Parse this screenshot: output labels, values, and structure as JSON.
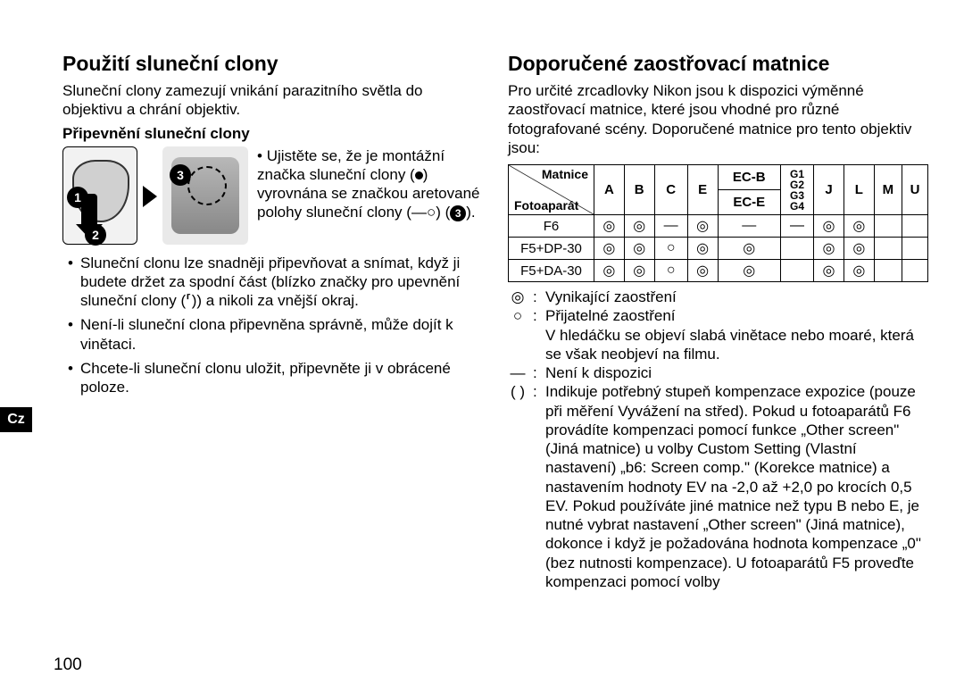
{
  "page_number": "100",
  "lang_tab": "Cz",
  "left": {
    "heading": "Použití sluneční clony",
    "intro": "Sluneční clony zamezují vnikání parazitního světla do objektivu a chrání objektiv.",
    "sub_heading": "Připevnění sluneční clony",
    "attach_pre": "Ujistěte se, že je montážní značka sluneční clony (",
    "attach_mid1": ") vyrovnána se značkou aretované polohy sluneční clony (",
    "attach_mark2": "—○",
    "attach_mid2": ") (",
    "attach_post": ").",
    "bullet1": "Sluneční clonu lze snadněji připevňovat a snímat, když ji budete držet za spodní část (blízko značky pro upevnění sluneční clony (⸢)) a nikoli za vnější okraj.",
    "bullet2": "Není-li sluneční clona připevněna správně, může dojít k vinětaci.",
    "bullet3": "Chcete-li sluneční clonu uložit, připevněte ji v obrácené poloze."
  },
  "right": {
    "heading": "Doporučené zaostřovací matnice",
    "intro": "Pro určité zrcadlovky Nikon jsou k dispozici výměnné zaostřovací matnice, které jsou vhodné pro různé fotografované scény. Doporučené matnice pro tento objektiv jsou:",
    "table": {
      "head_top": "Matnice",
      "head_bot": "Fotoaparát",
      "cols_simple": [
        "A",
        "B",
        "C",
        "E"
      ],
      "col_ec": [
        "EC-B",
        "EC-E"
      ],
      "col_g": [
        "G1",
        "G2",
        "G3",
        "G4"
      ],
      "cols_tail": [
        "J",
        "L",
        "M",
        "U"
      ],
      "rows": [
        {
          "name": "F6",
          "cells": [
            "◎",
            "◎",
            "―",
            "◎",
            "―",
            "―",
            "◎",
            "◎",
            "",
            ""
          ]
        },
        {
          "name": "F5+DP-30",
          "cells": [
            "◎",
            "◎",
            "○",
            "◎",
            "◎",
            "",
            "◎",
            "◎",
            "",
            ""
          ]
        },
        {
          "name": "F5+DA-30",
          "cells": [
            "◎",
            "◎",
            "○",
            "◎",
            "◎",
            "",
            "◎",
            "◎",
            "",
            ""
          ]
        }
      ]
    },
    "legend": [
      {
        "sym": "◎",
        "colon": ":",
        "text": "Vynikající zaostření"
      },
      {
        "sym": "○",
        "colon": ":",
        "text": "Přijatelné zaostření"
      },
      {
        "sym": "",
        "colon": "",
        "text": "V hledáčku se objeví slabá vinětace nebo moaré, která se však neobjeví na filmu."
      },
      {
        "sym": "―",
        "colon": ":",
        "text": "Není k dispozici"
      },
      {
        "sym": "( )",
        "colon": ":",
        "text": "Indikuje potřebný stupeň kompenzace expozice (pouze při měření Vyvážení na střed). Pokud u fotoaparátů F6 provádíte kompenzaci pomocí funkce „Other screen\" (Jiná matnice) u volby Custom Setting (Vlastní nastavení) „b6: Screen comp.\" (Korekce matnice) a nastavením hodnoty EV na -2,0 až +2,0 po krocích 0,5 EV. Pokud používáte jiné matnice než typu B nebo E, je nutné vybrat nastavení „Other screen\" (Jiná matnice), dokonce i když je požadována hodnota kompenzace „0\" (bez nutnosti kompenzace). U fotoaparátů F5 proveďte kompenzaci pomocí volby"
      }
    ]
  },
  "colors": {
    "text": "#000000",
    "bg": "#ffffff",
    "tab_bg": "#000000",
    "tab_fg": "#ffffff"
  }
}
